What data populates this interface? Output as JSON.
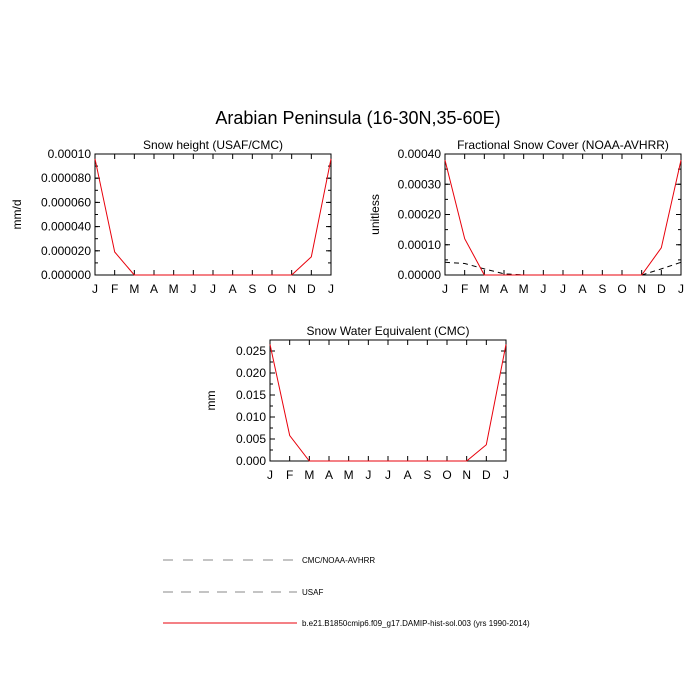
{
  "figure_title": "Arabian Peninsula (16-30N,35-60E)",
  "colors": {
    "model": "#e8000b",
    "obs_cmc": "#000000",
    "obs_usaf": "#000000",
    "legend_dash": "#888888",
    "axis": "#000000"
  },
  "legend": {
    "entries": [
      {
        "label": "CMC/NOAA-AVHRR",
        "style": "dashed-long",
        "color": "#888888"
      },
      {
        "label": "USAF",
        "style": "dashed",
        "color": "#888888"
      },
      {
        "label": "b.e21.B1850cmip6.f09_g17.DAMIP-hist-sol.003 (yrs 1990-2014)",
        "style": "solid",
        "color": "#e8000b"
      }
    ]
  },
  "chart_data": [
    {
      "type": "line",
      "title": "Snow height (USAF/CMC)",
      "xlabel": "",
      "ylabel": "mm/d",
      "categories": [
        "J",
        "F",
        "M",
        "A",
        "M",
        "J",
        "J",
        "A",
        "S",
        "O",
        "N",
        "D",
        "J"
      ],
      "ylim": [
        0,
        0.0001
      ],
      "yticks": [
        "0.000000",
        "0.000020",
        "0.000040",
        "0.000060",
        "0.000080",
        "0.00010"
      ],
      "series": [
        {
          "name": "b.e21.B1850cmip6.f09_g17.DAMIP-hist-sol.003 (yrs 1990-2014)",
          "color": "#e8000b",
          "dash": "solid",
          "values": [
            9.6e-05,
            1.9e-05,
            0.0,
            0.0,
            0.0,
            0.0,
            0.0,
            0.0,
            0.0,
            0.0,
            0.0,
            1.5e-05,
            9.6e-05
          ]
        },
        {
          "name": "USAF",
          "color": "#000000",
          "dash": "dashed",
          "values": [
            0.0,
            0.0,
            0.0,
            0.0,
            0.0,
            0.0,
            0.0,
            0.0,
            0.0,
            0.0,
            0.0,
            0.0,
            0.0
          ]
        }
      ]
    },
    {
      "type": "line",
      "title": "Fractional Snow Cover (NOAA-AVHRR)",
      "xlabel": "",
      "ylabel": "unitless",
      "categories": [
        "J",
        "F",
        "M",
        "A",
        "M",
        "J",
        "J",
        "A",
        "S",
        "O",
        "N",
        "D",
        "J"
      ],
      "ylim": [
        0,
        0.0004
      ],
      "yticks": [
        "0.00000",
        "0.00010",
        "0.00020",
        "0.00030",
        "0.00040"
      ],
      "series": [
        {
          "name": "b.e21.B1850cmip6.f09_g17.DAMIP-hist-sol.003 (yrs 1990-2014)",
          "color": "#e8000b",
          "dash": "solid",
          "values": [
            0.00038,
            0.00012,
            0.0,
            0.0,
            0.0,
            0.0,
            0.0,
            0.0,
            0.0,
            0.0,
            0.0,
            9e-05,
            0.00038
          ]
        },
        {
          "name": "CMC/NOAA-AVHRR",
          "color": "#000000",
          "dash": "dashed",
          "values": [
            4.2e-05,
            3.8e-05,
            2e-05,
            4e-06,
            0.0,
            0.0,
            0.0,
            0.0,
            0.0,
            0.0,
            0.0,
            2e-05,
            4.2e-05
          ]
        }
      ]
    },
    {
      "type": "line",
      "title": "Snow Water Equivalent (CMC)",
      "xlabel": "",
      "ylabel": "mm",
      "categories": [
        "J",
        "F",
        "M",
        "A",
        "M",
        "J",
        "J",
        "A",
        "S",
        "O",
        "N",
        "D",
        "J"
      ],
      "ylim": [
        0,
        0.0275
      ],
      "yticks": [
        "0.000",
        "0.005",
        "0.010",
        "0.015",
        "0.020",
        "0.025"
      ],
      "series": [
        {
          "name": "b.e21.B1850cmip6.f09_g17.DAMIP-hist-sol.003 (yrs 1990-2014)",
          "color": "#e8000b",
          "dash": "solid",
          "values": [
            0.0265,
            0.0058,
            0.0,
            0.0,
            0.0,
            0.0,
            0.0,
            0.0,
            0.0,
            0.0,
            0.0,
            0.0037,
            0.0265
          ]
        },
        {
          "name": "CMC/NOAA-AVHRR",
          "color": "#000000",
          "dash": "dashed",
          "values": [
            0.0,
            0.0,
            0.0,
            0.0,
            0.0,
            0.0,
            0.0,
            0.0,
            0.0,
            0.0,
            0.0,
            0.0,
            0.0
          ]
        }
      ]
    }
  ]
}
